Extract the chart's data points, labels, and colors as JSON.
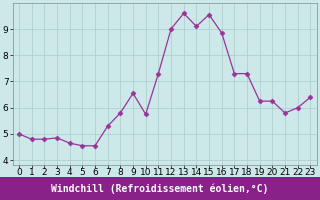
{
  "x": [
    0,
    1,
    2,
    3,
    4,
    5,
    6,
    7,
    8,
    9,
    10,
    11,
    12,
    13,
    14,
    15,
    16,
    17,
    18,
    19,
    20,
    21,
    22,
    23
  ],
  "y": [
    5.0,
    4.8,
    4.8,
    4.85,
    4.65,
    4.55,
    4.55,
    5.3,
    5.8,
    6.55,
    5.75,
    7.3,
    9.0,
    9.6,
    9.1,
    9.55,
    8.85,
    7.3,
    7.3,
    6.25,
    6.25,
    5.8,
    6.0,
    6.4
  ],
  "line_color": "#993399",
  "marker": "D",
  "marker_size": 2.5,
  "bg_color": "#cce8e8",
  "grid_color": "#b0d0d0",
  "xlabel": "Windchill (Refroidissement éolien,°C)",
  "xlabel_bg": "#882288",
  "xlabel_color": "#ffffff",
  "ylabel_ticks": [
    4,
    5,
    6,
    7,
    8,
    9
  ],
  "xtick_labels": [
    "0",
    "1",
    "2",
    "3",
    "4",
    "5",
    "6",
    "7",
    "8",
    "9",
    "10",
    "11",
    "12",
    "13",
    "14",
    "15",
    "16",
    "17",
    "18",
    "19",
    "20",
    "21",
    "22",
    "23"
  ],
  "ylim": [
    3.8,
    10.0
  ],
  "xlim": [
    -0.5,
    23.5
  ],
  "tick_fontsize": 6.5,
  "xlabel_fontsize": 7.0,
  "spine_color": "#888888"
}
